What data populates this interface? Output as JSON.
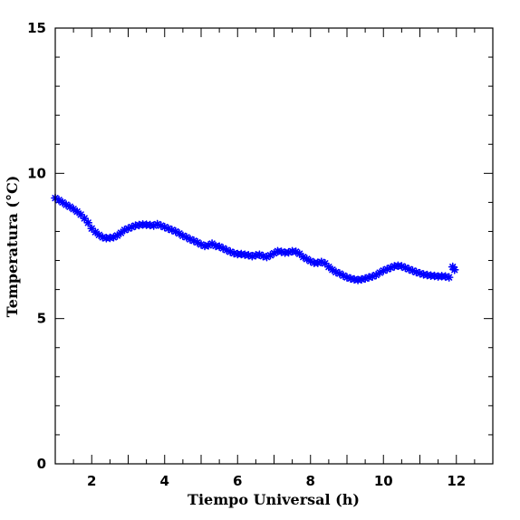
{
  "chart_data": {
    "type": "scatter",
    "title": "",
    "xlabel": "Tiempo Universal (h)",
    "ylabel": "Temperatura (°C)",
    "xlim": [
      1,
      13
    ],
    "ylim": [
      0,
      15
    ],
    "x_ticks": [
      2,
      4,
      6,
      8,
      10,
      12
    ],
    "y_ticks": [
      0,
      5,
      10,
      15
    ],
    "marker": "asterisk",
    "marker_color": "#0000ff",
    "grid": false,
    "legend": "none",
    "series": [
      {
        "points": [
          [
            1.0,
            9.15
          ],
          [
            1.1,
            9.08
          ],
          [
            1.2,
            9.0
          ],
          [
            1.3,
            8.92
          ],
          [
            1.4,
            8.85
          ],
          [
            1.5,
            8.77
          ],
          [
            1.6,
            8.68
          ],
          [
            1.7,
            8.58
          ],
          [
            1.8,
            8.45
          ],
          [
            1.9,
            8.3
          ],
          [
            2.0,
            8.1
          ],
          [
            2.1,
            7.98
          ],
          [
            2.2,
            7.88
          ],
          [
            2.3,
            7.8
          ],
          [
            2.4,
            7.77
          ],
          [
            2.5,
            7.78
          ],
          [
            2.6,
            7.8
          ],
          [
            2.7,
            7.86
          ],
          [
            2.8,
            7.95
          ],
          [
            2.9,
            8.05
          ],
          [
            3.0,
            8.1
          ],
          [
            3.1,
            8.15
          ],
          [
            3.2,
            8.2
          ],
          [
            3.3,
            8.22
          ],
          [
            3.4,
            8.24
          ],
          [
            3.5,
            8.23
          ],
          [
            3.6,
            8.22
          ],
          [
            3.7,
            8.2
          ],
          [
            3.8,
            8.25
          ],
          [
            3.9,
            8.2
          ],
          [
            4.0,
            8.15
          ],
          [
            4.1,
            8.1
          ],
          [
            4.2,
            8.05
          ],
          [
            4.3,
            8.0
          ],
          [
            4.4,
            7.93
          ],
          [
            4.5,
            7.85
          ],
          [
            4.6,
            7.8
          ],
          [
            4.7,
            7.73
          ],
          [
            4.8,
            7.68
          ],
          [
            4.9,
            7.62
          ],
          [
            5.0,
            7.55
          ],
          [
            5.1,
            7.5
          ],
          [
            5.2,
            7.52
          ],
          [
            5.3,
            7.58
          ],
          [
            5.4,
            7.5
          ],
          [
            5.5,
            7.48
          ],
          [
            5.6,
            7.42
          ],
          [
            5.7,
            7.36
          ],
          [
            5.8,
            7.3
          ],
          [
            5.9,
            7.25
          ],
          [
            6.0,
            7.22
          ],
          [
            6.1,
            7.22
          ],
          [
            6.2,
            7.2
          ],
          [
            6.3,
            7.18
          ],
          [
            6.4,
            7.15
          ],
          [
            6.5,
            7.18
          ],
          [
            6.6,
            7.2
          ],
          [
            6.7,
            7.15
          ],
          [
            6.8,
            7.12
          ],
          [
            6.9,
            7.18
          ],
          [
            7.0,
            7.25
          ],
          [
            7.1,
            7.32
          ],
          [
            7.2,
            7.3
          ],
          [
            7.3,
            7.27
          ],
          [
            7.4,
            7.28
          ],
          [
            7.5,
            7.32
          ],
          [
            7.6,
            7.3
          ],
          [
            7.7,
            7.23
          ],
          [
            7.8,
            7.12
          ],
          [
            7.9,
            7.05
          ],
          [
            8.0,
            6.98
          ],
          [
            8.1,
            6.92
          ],
          [
            8.2,
            6.92
          ],
          [
            8.3,
            6.95
          ],
          [
            8.4,
            6.9
          ],
          [
            8.5,
            6.78
          ],
          [
            8.6,
            6.68
          ],
          [
            8.7,
            6.6
          ],
          [
            8.8,
            6.55
          ],
          [
            8.9,
            6.48
          ],
          [
            9.0,
            6.42
          ],
          [
            9.1,
            6.38
          ],
          [
            9.2,
            6.35
          ],
          [
            9.3,
            6.33
          ],
          [
            9.4,
            6.35
          ],
          [
            9.5,
            6.38
          ],
          [
            9.6,
            6.42
          ],
          [
            9.7,
            6.45
          ],
          [
            9.8,
            6.5
          ],
          [
            9.9,
            6.58
          ],
          [
            10.0,
            6.65
          ],
          [
            10.1,
            6.7
          ],
          [
            10.2,
            6.75
          ],
          [
            10.3,
            6.8
          ],
          [
            10.4,
            6.82
          ],
          [
            10.5,
            6.8
          ],
          [
            10.6,
            6.75
          ],
          [
            10.7,
            6.7
          ],
          [
            10.8,
            6.65
          ],
          [
            10.9,
            6.6
          ],
          [
            11.0,
            6.56
          ],
          [
            11.1,
            6.52
          ],
          [
            11.2,
            6.5
          ],
          [
            11.3,
            6.48
          ],
          [
            11.4,
            6.47
          ],
          [
            11.5,
            6.45
          ],
          [
            11.6,
            6.46
          ],
          [
            11.7,
            6.45
          ],
          [
            11.8,
            6.42
          ],
          [
            11.9,
            6.78
          ],
          [
            11.95,
            6.68
          ]
        ]
      }
    ]
  }
}
